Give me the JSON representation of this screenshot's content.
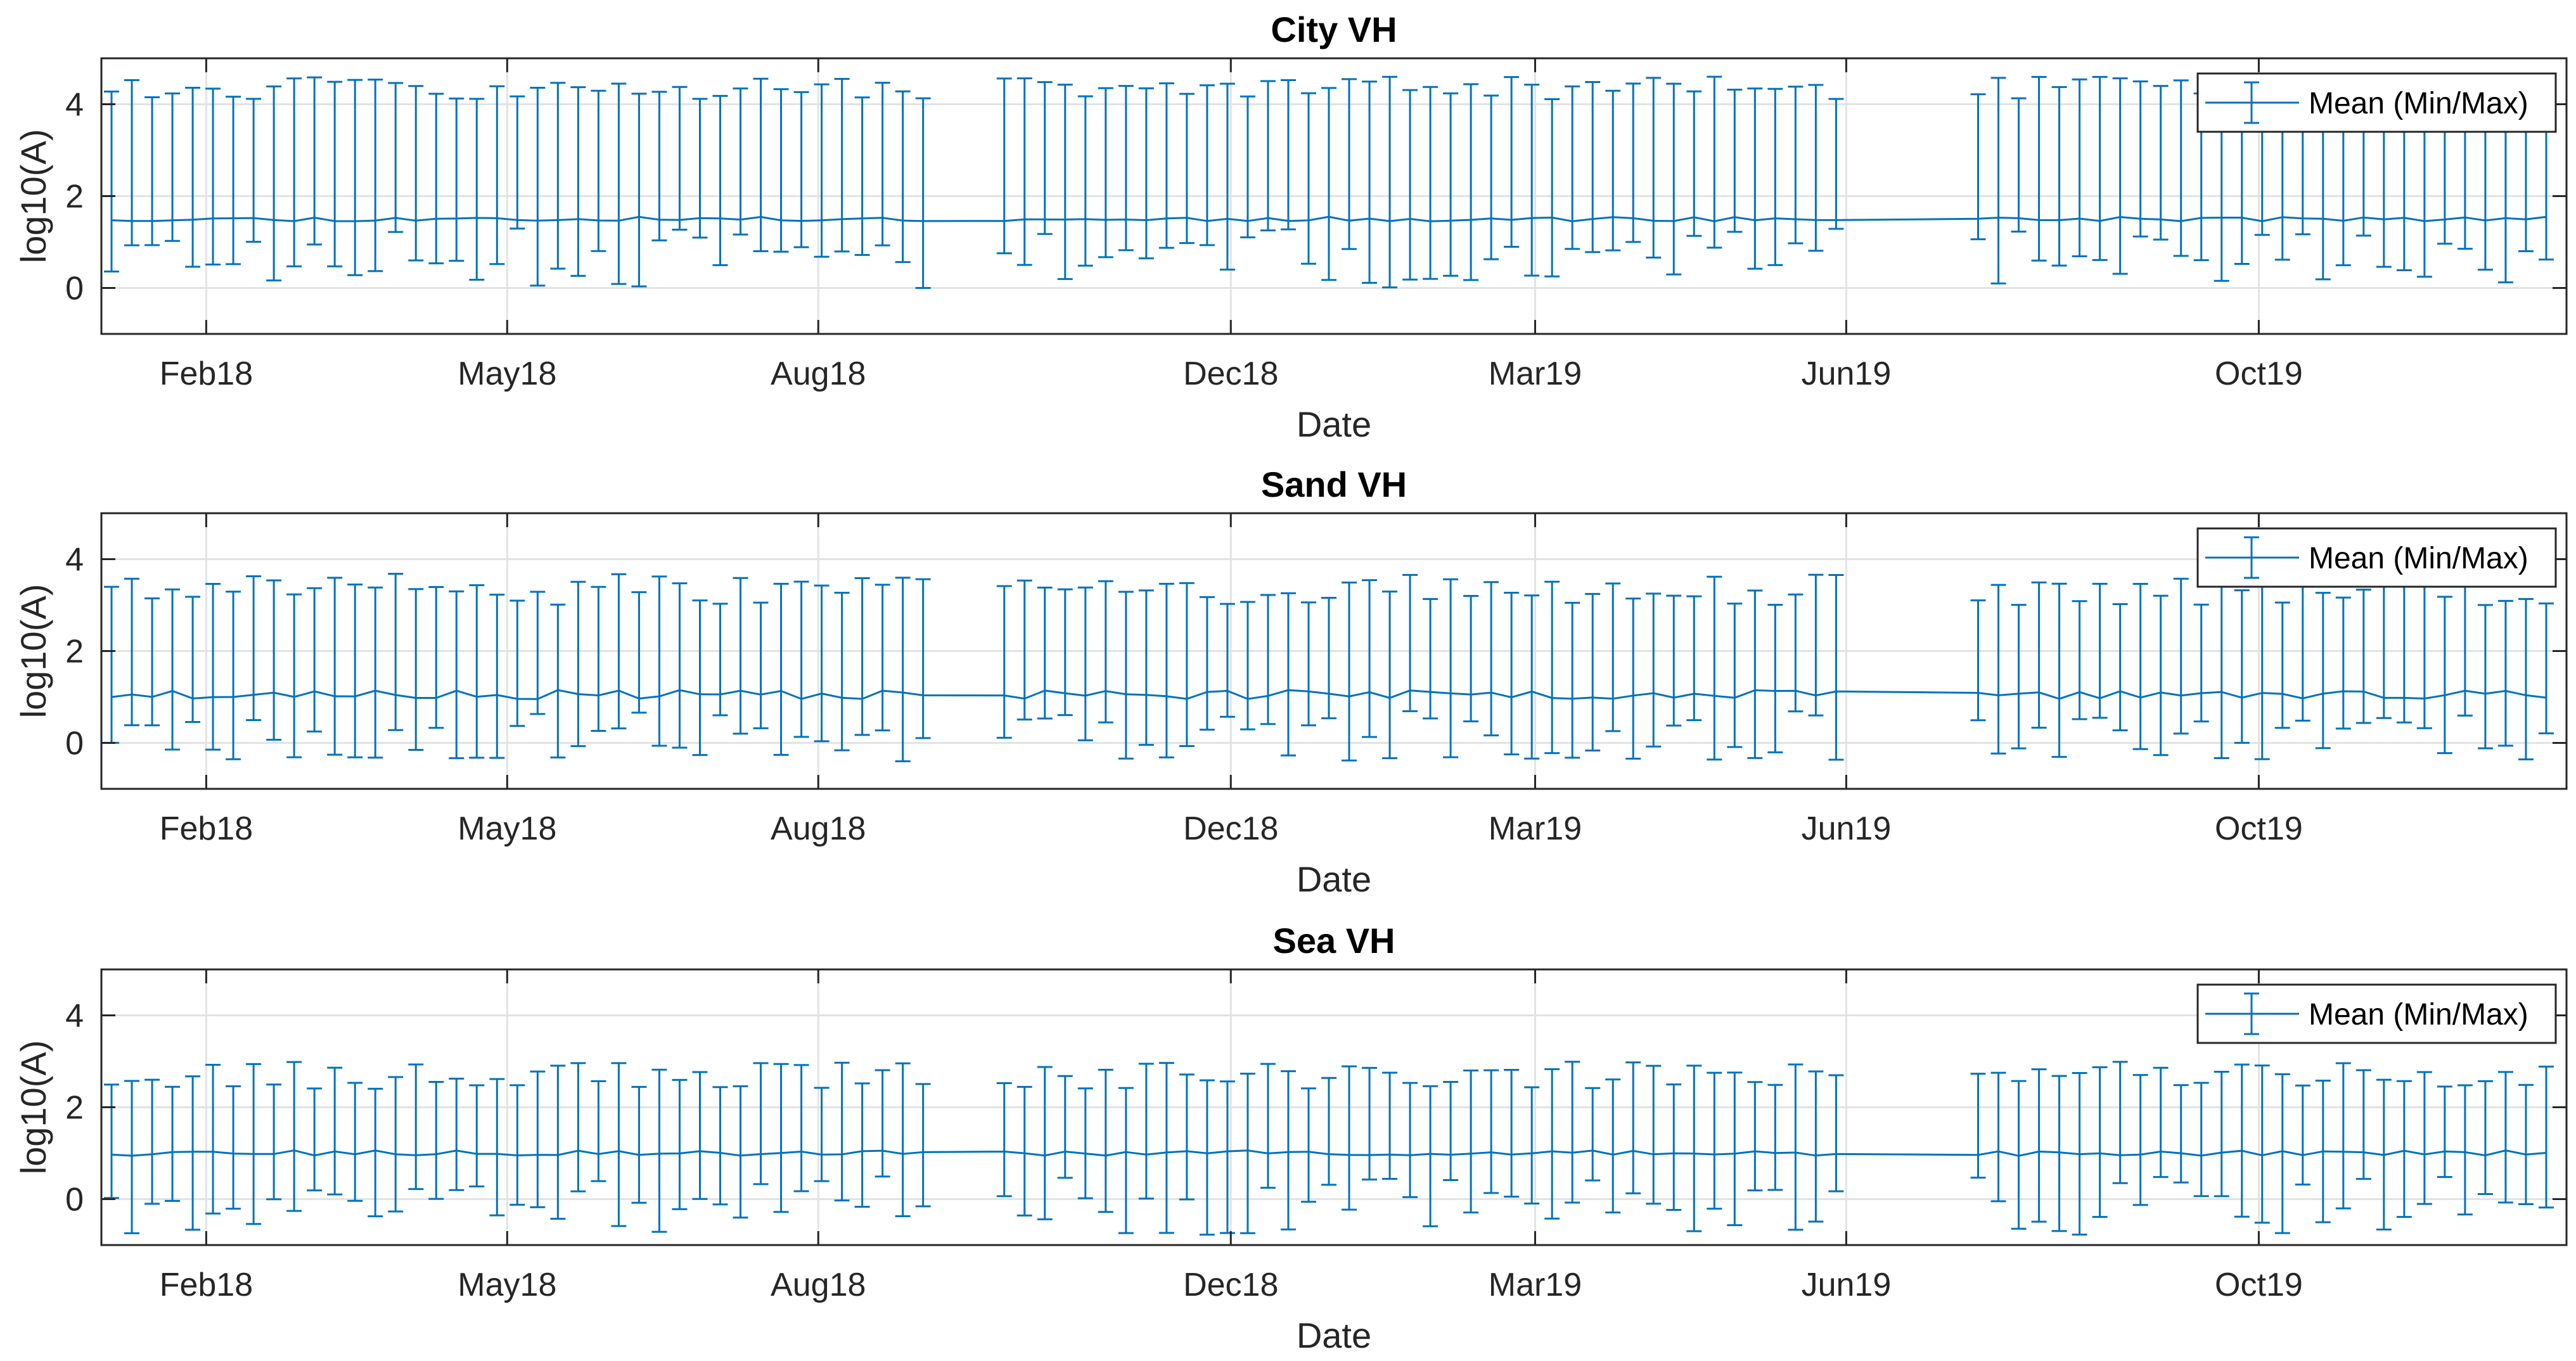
{
  "chart_data": [
    {
      "type": "errorbar",
      "title": "City VH",
      "xlabel": "Date",
      "ylabel": "log10(A)",
      "ylim": [
        -1,
        5
      ],
      "yticks": [
        0,
        2,
        4
      ],
      "xticks": [
        "Feb18",
        "May18",
        "Aug18",
        "Dec18",
        "Mar19",
        "Jun19",
        "Oct19"
      ],
      "legend": "Mean (Min/Max)",
      "legend_position": "top-right",
      "series": [
        {
          "name": "Mean (Min/Max)",
          "seed": 11,
          "mean": 1.5,
          "mean_jitter": 0.05,
          "min_low": 0.0,
          "min_high": 1.3,
          "max_low": 4.1,
          "max_high": 4.6
        }
      ]
    },
    {
      "type": "errorbar",
      "title": "Sand VH",
      "xlabel": "Date",
      "ylabel": "log10(A)",
      "ylim": [
        -1,
        5
      ],
      "yticks": [
        0,
        2,
        4
      ],
      "xticks": [
        "Feb18",
        "May18",
        "Aug18",
        "Dec18",
        "Mar19",
        "Jun19",
        "Oct19"
      ],
      "legend": "Mean (Min/Max)",
      "legend_position": "top-right",
      "series": [
        {
          "name": "Mean (Min/Max)",
          "seed": 23,
          "mean": 1.05,
          "mean_jitter": 0.1,
          "min_low": -0.4,
          "min_high": 0.7,
          "max_low": 3.0,
          "max_high": 3.7
        }
      ]
    },
    {
      "type": "errorbar",
      "title": "Sea VH",
      "xlabel": "Date",
      "ylabel": "log10(A)",
      "ylim": [
        -1,
        5
      ],
      "yticks": [
        0,
        2,
        4
      ],
      "xticks": [
        "Feb18",
        "May18",
        "Aug18",
        "Dec18",
        "Mar19",
        "Jun19",
        "Oct19"
      ],
      "legend": "Mean (Min/Max)",
      "legend_position": "top-right",
      "series": [
        {
          "name": "Mean (Min/Max)",
          "seed": 37,
          "mean": 1.0,
          "mean_jitter": 0.06,
          "min_low": -0.8,
          "min_high": 0.5,
          "max_low": 2.4,
          "max_high": 3.0
        }
      ]
    }
  ],
  "x_axis": {
    "start": "2018-01-01",
    "end": "2019-12-31",
    "tick_dates": [
      "2018-02-01",
      "2018-05-01",
      "2018-08-01",
      "2018-12-01",
      "2019-03-01",
      "2019-06-01",
      "2019-10-01"
    ]
  },
  "colors": {
    "series": "#0072BD",
    "axis": "#262626",
    "grid": "#E3E3E3",
    "title": "#000000"
  }
}
